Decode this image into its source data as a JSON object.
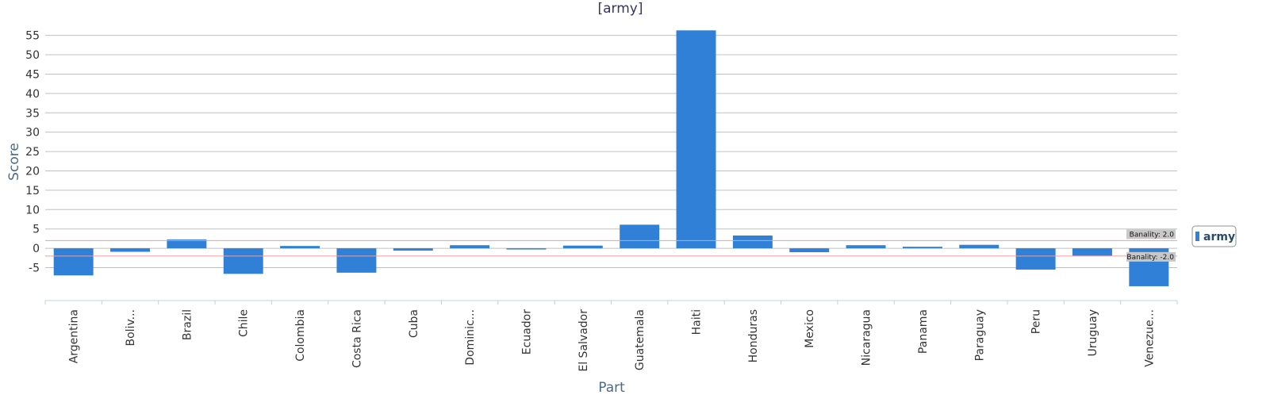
{
  "chart_data": {
    "type": "bar",
    "title": "[army]",
    "xlabel": "Part",
    "ylabel": "Score",
    "categories": [
      "Argentina",
      "Boliv...",
      "Brazil",
      "Chile",
      "Colombia",
      "Costa Rica",
      "Cuba",
      "Dominic...",
      "Ecuador",
      "El Salvador",
      "Guatemala",
      "Haiti",
      "Honduras",
      "Mexico",
      "Nicaragua",
      "Panama",
      "Paraguay",
      "Peru",
      "Uruguay",
      "Venezue..."
    ],
    "series": [
      {
        "name": "army",
        "color": "#3080d8",
        "values": [
          -7.0,
          -0.9,
          2.3,
          -6.6,
          0.6,
          -6.3,
          -0.6,
          0.8,
          -0.3,
          0.7,
          6.1,
          56.3,
          3.3,
          -1.0,
          0.8,
          0.4,
          0.9,
          -5.5,
          -1.9,
          -9.8
        ]
      }
    ],
    "ylim": [
      -13.5,
      58
    ],
    "yticks": [
      -5,
      0,
      5,
      10,
      15,
      20,
      25,
      30,
      35,
      40,
      45,
      50,
      55
    ],
    "grid": true,
    "legend": "right",
    "reference_lines": [
      {
        "value": 2.0,
        "label": "Banality: 2.0"
      },
      {
        "value": -2.0,
        "label": "Banality: -2.0"
      }
    ]
  }
}
